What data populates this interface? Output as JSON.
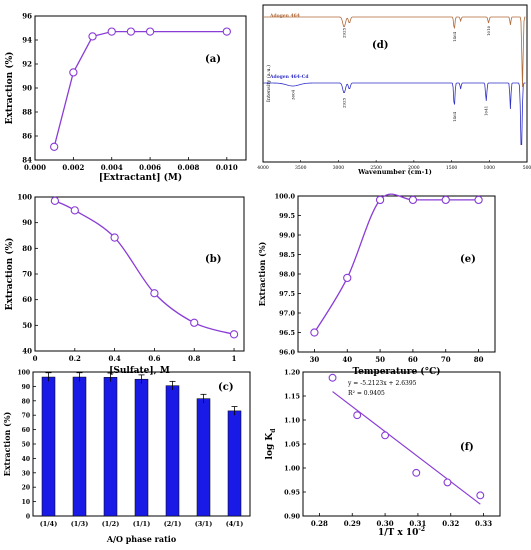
{
  "colors": {
    "purple": "#8a3cd6",
    "bar_blue": "#1a1ae6",
    "ftir_brown": "#b06a3a",
    "ftir_blue": "#3030c8",
    "axis": "#000000"
  },
  "chart_data": [
    {
      "id": "a",
      "type": "line",
      "panel_label": "(a)",
      "xlabel": "[Extractant] (M)",
      "ylabel": "Extraction (%)",
      "xlim": [
        0,
        0.011
      ],
      "ylim": [
        84,
        96
      ],
      "xticks": [
        0.0,
        0.002,
        0.004,
        0.006,
        0.008,
        0.01
      ],
      "xtick_labels": [
        "0.000",
        "0.002",
        "0.004",
        "0.006",
        "0.008",
        "0.010"
      ],
      "yticks": [
        84,
        86,
        88,
        90,
        92,
        94,
        96
      ],
      "x": [
        0.001,
        0.002,
        0.003,
        0.004,
        0.005,
        0.006,
        0.01
      ],
      "y": [
        85.1,
        91.3,
        94.3,
        94.7,
        94.7,
        94.7,
        94.7
      ]
    },
    {
      "id": "b",
      "type": "line",
      "panel_label": "(b)",
      "xlabel": "[Sulfate], M",
      "ylabel": "Extraction (%)",
      "xlim": [
        0,
        1.05
      ],
      "ylim": [
        40,
        100
      ],
      "xticks": [
        0,
        0.2,
        0.4,
        0.6,
        0.8,
        1
      ],
      "xtick_labels": [
        "0",
        "0.2",
        "0.4",
        "0.6",
        "0.8",
        "1"
      ],
      "yticks": [
        40,
        50,
        60,
        70,
        80,
        90,
        100
      ],
      "x": [
        0.1,
        0.2,
        0.4,
        0.6,
        0.8,
        1.0
      ],
      "y": [
        98.5,
        94.8,
        84.2,
        62.5,
        51.0,
        46.5
      ]
    },
    {
      "id": "c",
      "type": "bar",
      "panel_label": "(c)",
      "xlabel": "A/O phase ratio",
      "ylabel": "Extraction (%)",
      "ylim": [
        0,
        100
      ],
      "yticks": [
        0,
        10,
        20,
        30,
        40,
        50,
        60,
        70,
        80,
        90,
        100
      ],
      "categories": [
        "(1/4)",
        "(1/3)",
        "(1/2)",
        "(1/1)",
        "(2/1)",
        "(3/1)",
        "(4/1)"
      ],
      "values": [
        96.5,
        96.5,
        96.3,
        95.0,
        90.5,
        81.5,
        73.0
      ],
      "errors": [
        3.0,
        3.0,
        3.0,
        3.0,
        3.0,
        3.0,
        3.0
      ]
    },
    {
      "id": "d",
      "type": "line",
      "panel_label": "(d)",
      "xlabel": "Wavenumber (cm-1)",
      "ylabel": "Intensity (a.u.)",
      "xlim": [
        4000,
        500
      ],
      "xticks": [
        4000,
        3500,
        3000,
        2500,
        2000,
        1500,
        1000,
        500
      ],
      "xtick_labels": [
        "4000",
        "3500",
        "3000",
        "2500",
        "2000",
        "1500",
        "1000",
        "500"
      ],
      "series": [
        {
          "name": "Adogen 464",
          "peak_labels": [
            {
              "x": 2925,
              "label": "2925"
            },
            {
              "x": 1464,
              "label": "1464"
            },
            {
              "x": 1010,
              "label": "1010"
            }
          ]
        },
        {
          "name": "Adogen 464-Cd",
          "peak_labels": [
            {
              "x": 3604,
              "label": "3604"
            },
            {
              "x": 2925,
              "label": "2925"
            },
            {
              "x": 1464,
              "label": "1464"
            },
            {
              "x": 1041,
              "label": "1041"
            }
          ]
        }
      ]
    },
    {
      "id": "e",
      "type": "line",
      "panel_label": "(e)",
      "xlabel": "Temperature (°C)",
      "ylabel": "Extraction (%)",
      "xlim": [
        25,
        85
      ],
      "ylim": [
        96.0,
        100.0
      ],
      "xticks": [
        30,
        40,
        50,
        60,
        70,
        80
      ],
      "yticks": [
        96.0,
        96.5,
        97.0,
        97.5,
        98.0,
        98.5,
        99.0,
        99.5,
        100.0
      ],
      "ytick_labels": [
        "96.0",
        "96.5",
        "97.0",
        "97.5",
        "98.0",
        "98.5",
        "99.0",
        "99.5",
        "100.0"
      ],
      "x": [
        30,
        40,
        50,
        60,
        70,
        80
      ],
      "y": [
        96.5,
        97.9,
        99.9,
        99.9,
        99.9,
        99.9
      ]
    },
    {
      "id": "f",
      "type": "scatter",
      "panel_label": "(f)",
      "xlabel": "1/T x 10",
      "xlabel_sup": "-2",
      "ylabel": "log K",
      "ylabel_sub": "d",
      "xlim": [
        0.275,
        0.335
      ],
      "ylim": [
        0.9,
        1.2
      ],
      "xticks": [
        0.28,
        0.29,
        0.3,
        0.31,
        0.32,
        0.33
      ],
      "xtick_labels": [
        "0.28",
        "0.29",
        "0.30",
        "0.31",
        "0.32",
        "0.33"
      ],
      "yticks": [
        0.9,
        0.95,
        1.0,
        1.05,
        1.1,
        1.15,
        1.2
      ],
      "ytick_labels": [
        "0.90",
        "0.95",
        "1.00",
        "1.05",
        "1.10",
        "1.15",
        "1.20"
      ],
      "x": [
        0.284,
        0.2915,
        0.3,
        0.3095,
        0.319,
        0.329
      ],
      "y": [
        1.188,
        1.11,
        1.068,
        0.99,
        0.97,
        0.943
      ],
      "fit": {
        "slope": -5.2123,
        "intercept": 2.6395
      },
      "equation": "y = -5.2123x + 2.6395",
      "r2": "R² = 0.9405"
    }
  ]
}
